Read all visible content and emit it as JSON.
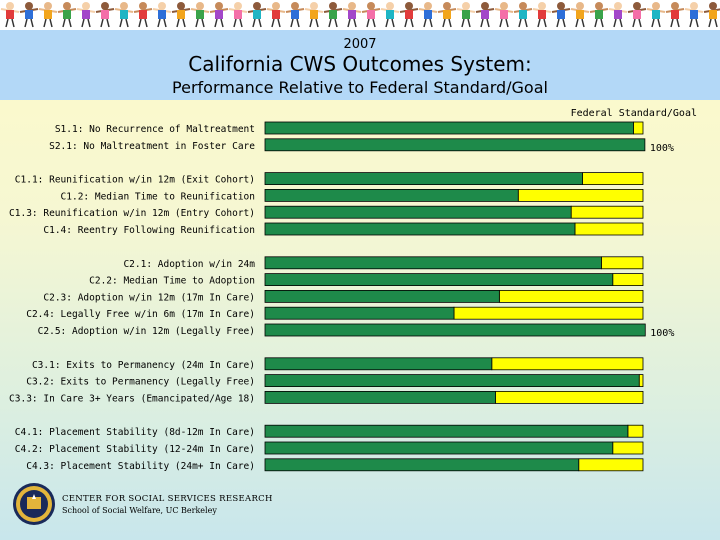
{
  "header": {
    "year": "2007",
    "title": "California CWS Outcomes System:",
    "subtitle": "Performance Relative to Federal Standard/Goal"
  },
  "footer": {
    "org_name": "CENTER FOR SOCIAL SERVICES RESEARCH",
    "org_sub": "School of Social Welfare, UC Berkeley"
  },
  "colors": {
    "performance": "#1e8a4a",
    "gap_to_goal": "#ffff00",
    "header_bg": "#b3d8f7"
  },
  "chart_data": {
    "type": "bar",
    "orientation": "horizontal",
    "goal_label": "Federal Standard/Goal",
    "series": [
      {
        "name": "",
        "color": "#1e8a4a"
      }
    ],
    "rows": [
      {
        "label": "S1.1: No Recurrence of Maltreatment",
        "group": 0,
        "performance": 97.5,
        "goal": 100,
        "pct_label": ""
      },
      {
        "label": "S2.1: No Maltreatment in Foster Care",
        "group": 0,
        "performance": 100.5,
        "goal": 100,
        "pct_label": "100%"
      },
      {
        "label": "C1.1: Reunification w/in 12m (Exit Cohort)",
        "group": 1,
        "performance": 84,
        "goal": 100,
        "pct_label": ""
      },
      {
        "label": "C1.2: Median Time to Reunification",
        "group": 1,
        "performance": 67,
        "goal": 100,
        "pct_label": ""
      },
      {
        "label": "C1.3: Reunification w/in 12m (Entry Cohort)",
        "group": 1,
        "performance": 81,
        "goal": 100,
        "pct_label": ""
      },
      {
        "label": "C1.4: Reentry Following Reunification",
        "group": 1,
        "performance": 82,
        "goal": 100,
        "pct_label": ""
      },
      {
        "label": "C2.1: Adoption w/in 24m",
        "group": 2,
        "performance": 89,
        "goal": 100,
        "pct_label": ""
      },
      {
        "label": "C2.2: Median Time to Adoption",
        "group": 2,
        "performance": 92,
        "goal": 100,
        "pct_label": ""
      },
      {
        "label": "C2.3: Adoption w/in 12m (17m In Care)",
        "group": 2,
        "performance": 62,
        "goal": 100,
        "pct_label": ""
      },
      {
        "label": "C2.4: Legally Free w/in 6m (17m In Care)",
        "group": 2,
        "performance": 50,
        "goal": 100,
        "pct_label": ""
      },
      {
        "label": "C2.5: Adoption w/in 12m (Legally Free)",
        "group": 2,
        "performance": 101,
        "goal": 100,
        "pct_label": "100%"
      },
      {
        "label": "C3.1:  Exits to Permanency (24m In Care)",
        "group": 3,
        "performance": 60,
        "goal": 100,
        "pct_label": ""
      },
      {
        "label": "C3.2:  Exits to Permanency (Legally Free)",
        "group": 3,
        "performance": 99,
        "goal": 100,
        "pct_label": ""
      },
      {
        "label": "C3.3: In Care 3+ Years (Emancipated/Age 18)",
        "group": 3,
        "performance": 61,
        "goal": 100,
        "pct_label": ""
      },
      {
        "label": "C4.1: Placement Stability (8d-12m In Care)",
        "group": 4,
        "performance": 96,
        "goal": 100,
        "pct_label": ""
      },
      {
        "label": "C4.2: Placement Stability (12-24m In Care)",
        "group": 4,
        "performance": 92,
        "goal": 100,
        "pct_label": ""
      },
      {
        "label": "C4.3: Placement Stability (24m+ In Care)",
        "group": 4,
        "performance": 83,
        "goal": 100,
        "pct_label": ""
      }
    ],
    "xlim": [
      0,
      100
    ],
    "grid": false,
    "legend": "none"
  }
}
